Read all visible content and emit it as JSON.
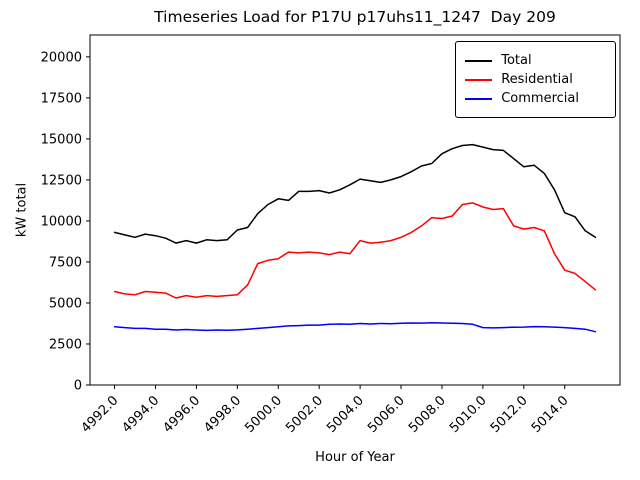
{
  "chart_data": {
    "type": "line",
    "title": "Timeseries Load for P17U p17uhs11_1247  Day 209",
    "xlabel": "Hour of Year",
    "ylabel": "kW total",
    "grid": false,
    "legend_position": "upper right",
    "x_start": 4992,
    "x_step": 0.5,
    "xlim": [
      4990.8,
      5016.7
    ],
    "ylim": [
      0,
      21333
    ],
    "x_ticks": [
      4992,
      4994,
      4996,
      4998,
      5000,
      5002,
      5004,
      5006,
      5008,
      5010,
      5012,
      5014
    ],
    "x_tick_labels": [
      "4992.0",
      "4994.0",
      "4996.0",
      "4998.0",
      "5000.0",
      "5002.0",
      "5004.0",
      "5006.0",
      "5008.0",
      "5010.0",
      "5012.0",
      "5014.0"
    ],
    "y_ticks": [
      0,
      2500,
      5000,
      7500,
      10000,
      12500,
      15000,
      17500,
      20000
    ],
    "y_tick_labels": [
      "0",
      "2500",
      "5000",
      "7500",
      "10000",
      "12500",
      "15000",
      "17500",
      "20000"
    ],
    "series": [
      {
        "name": "Total",
        "color": "#000000",
        "values": [
          9300,
          9150,
          9000,
          9200,
          9100,
          8950,
          8650,
          8800,
          8650,
          8850,
          8800,
          8850,
          9450,
          9600,
          10450,
          11000,
          11350,
          11250,
          11800,
          11800,
          11850,
          11700,
          11900,
          12200,
          12550,
          12450,
          12350,
          12500,
          12700,
          13000,
          13350,
          13500,
          14100,
          14400,
          14600,
          14650,
          14500,
          14350,
          14300,
          13800,
          13300,
          13400,
          12900,
          11900,
          10500,
          10250,
          9400,
          9000
        ]
      },
      {
        "name": "Residential",
        "color": "#ff0000",
        "values": [
          5700,
          5550,
          5500,
          5700,
          5650,
          5600,
          5300,
          5450,
          5350,
          5450,
          5400,
          5450,
          5500,
          6100,
          7400,
          7600,
          7700,
          8100,
          8050,
          8100,
          8050,
          7950,
          8100,
          8000,
          8800,
          8650,
          8700,
          8800,
          9000,
          9300,
          9700,
          10200,
          10150,
          10300,
          11000,
          11100,
          10850,
          10700,
          10750,
          9700,
          9500,
          9600,
          9400,
          8000,
          7000,
          6800,
          6300,
          5800
        ]
      },
      {
        "name": "Commercial",
        "color": "#0000ff",
        "values": [
          3550,
          3500,
          3450,
          3450,
          3400,
          3400,
          3350,
          3380,
          3350,
          3330,
          3350,
          3340,
          3360,
          3400,
          3450,
          3500,
          3550,
          3600,
          3620,
          3650,
          3650,
          3700,
          3720,
          3700,
          3750,
          3720,
          3750,
          3730,
          3760,
          3780,
          3770,
          3790,
          3780,
          3760,
          3750,
          3700,
          3500,
          3480,
          3500,
          3520,
          3530,
          3560,
          3550,
          3530,
          3500,
          3450,
          3400,
          3250
        ]
      }
    ]
  }
}
